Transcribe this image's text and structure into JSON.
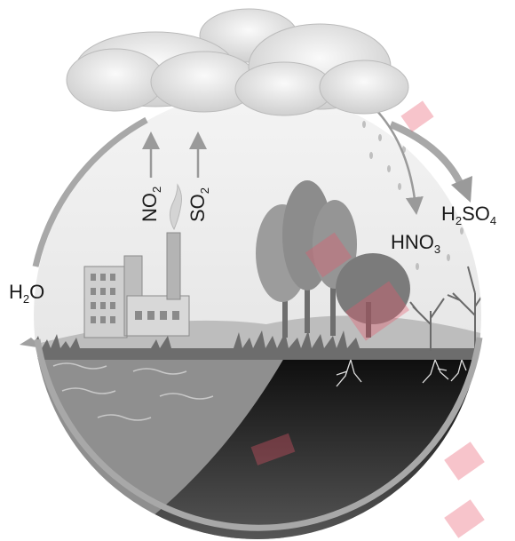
{
  "labels": {
    "no2": {
      "base": "NO",
      "sub": "2"
    },
    "so2": {
      "base": "SO",
      "sub": "2"
    },
    "h2o": {
      "pre": "H",
      "sub": "2",
      "post": "O"
    },
    "hno3": {
      "base": "HNO",
      "sub": "3"
    },
    "h2so4": {
      "pre": "H",
      "sub1": "2",
      "mid": "SO",
      "sub2": "4"
    }
  },
  "colors": {
    "cycle_arrow": "#a8a8a8",
    "cloud": "#e9e9e9",
    "sky": "#ececec",
    "water": "#8f8f8f",
    "soil": "#1e1e1e",
    "trees": "#8a8a8a",
    "watermark": "#e8566a"
  },
  "icons": [
    "cloud-icon",
    "factory-icon",
    "chimney-icon",
    "tree-icon",
    "rain-drop-icon",
    "root-icon",
    "arrow-icon"
  ]
}
